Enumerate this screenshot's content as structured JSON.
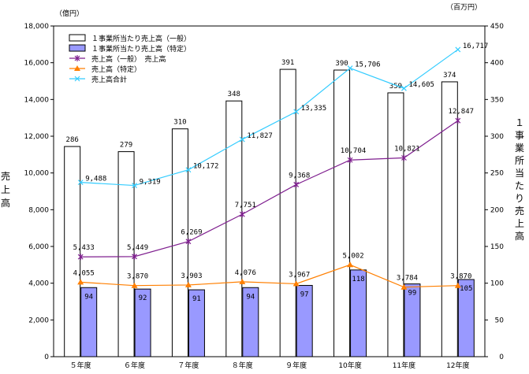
{
  "chart_data": {
    "type": "bar",
    "categories": [
      "５年度",
      "６年度",
      "７年度",
      "８年度",
      "９年度",
      "10年度",
      "11年度",
      "12年度"
    ],
    "left_axis": {
      "unit": "（億円）",
      "title": "売上高",
      "ylim": [
        0,
        18000
      ],
      "ticks": [
        "0",
        "2,000",
        "4,000",
        "6,000",
        "8,000",
        "10,000",
        "12,000",
        "14,000",
        "16,000",
        "18,000"
      ],
      "tick_values": [
        0,
        2000,
        4000,
        6000,
        8000,
        10000,
        12000,
        14000,
        16000,
        18000
      ]
    },
    "right_axis": {
      "unit": "（百万円）",
      "title": "１事業所当たり売上高",
      "ylim": [
        0,
        450
      ],
      "ticks": [
        "0",
        "50",
        "100",
        "150",
        "200",
        "250",
        "300",
        "350",
        "400",
        "450"
      ],
      "tick_values": [
        0,
        50,
        100,
        150,
        200,
        250,
        300,
        350,
        400,
        450
      ]
    },
    "series": [
      {
        "name": "１事業所当たり売上高（一般）",
        "kind": "bar",
        "axis": "right",
        "color": "#ffffff",
        "values": [
          286,
          279,
          310,
          348,
          391,
          390,
          359,
          374
        ],
        "labels": [
          "286",
          "279",
          "310",
          "348",
          "391",
          "390",
          "359",
          "374"
        ]
      },
      {
        "name": "１事業所当たり売上高（特定）",
        "kind": "bar",
        "axis": "right",
        "color": "#9999ff",
        "values": [
          94,
          92,
          91,
          94,
          97,
          118,
          99,
          105
        ],
        "labels": [
          "94",
          "92",
          "91",
          "94",
          "97",
          "118",
          "99",
          "105"
        ]
      },
      {
        "name": "売上高（一般）　売上高",
        "kind": "line",
        "axis": "left",
        "color": "#7f1f8f",
        "marker": "star",
        "values": [
          5433,
          5449,
          6269,
          7751,
          9368,
          10704,
          10821,
          12847
        ],
        "labels": [
          "5,433",
          "5,449",
          "6,269",
          "7,751",
          "9,368",
          "10,704",
          "10,821",
          "12,847"
        ]
      },
      {
        "name": "売上高（特定）",
        "kind": "line",
        "axis": "left",
        "color": "#ff7f00",
        "marker": "triangle",
        "values": [
          4055,
          3870,
          3903,
          4076,
          3967,
          5002,
          3784,
          3870
        ],
        "labels": [
          "4,055",
          "3,870",
          "3,903",
          "4,076",
          "3,967",
          "5,002",
          "3,784",
          "3,870"
        ]
      },
      {
        "name": "売上高合計",
        "kind": "line",
        "axis": "left",
        "color": "#33ccff",
        "marker": "x",
        "values": [
          9488,
          9319,
          10172,
          11827,
          13335,
          15706,
          14605,
          16717
        ],
        "labels": [
          "9,488",
          "9,319",
          "10,172",
          "11,827",
          "13,335",
          "15,706",
          "14,605",
          "16,717"
        ]
      }
    ],
    "legend_position": "top-left",
    "grid": false
  }
}
